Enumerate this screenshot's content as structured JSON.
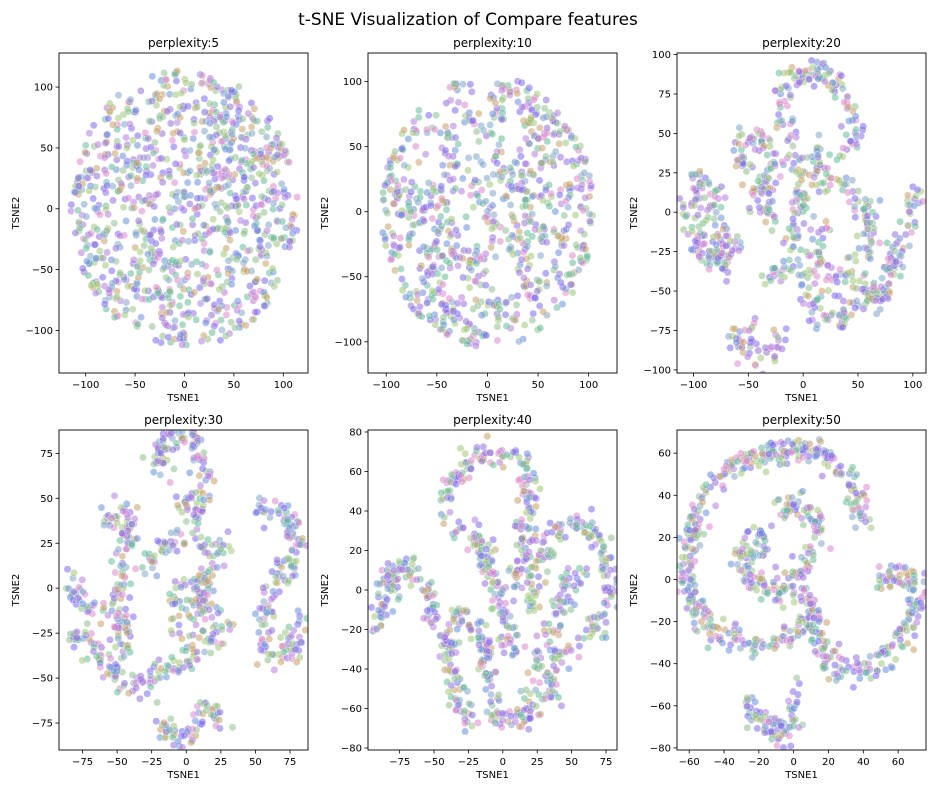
{
  "figure": {
    "title": "t-SNE Visualization of Compare features"
  },
  "chart_data": [
    {
      "type": "scatter",
      "title": "perplexity:5",
      "xlabel": "TSNE1",
      "ylabel": "TSNE2",
      "xlim": [
        -127,
        125
      ],
      "ylim": [
        -135,
        128
      ],
      "xticks": [
        -100,
        -50,
        0,
        50,
        100
      ],
      "yticks": [
        -100,
        -50,
        0,
        50,
        100
      ],
      "shape": "disc",
      "shape_params": {
        "r": 115
      },
      "n_points": 950
    },
    {
      "type": "scatter",
      "title": "perplexity:10",
      "xlabel": "TSNE1",
      "ylabel": "TSNE2",
      "xlim": [
        -118,
        128
      ],
      "ylim": [
        -124,
        122
      ],
      "xticks": [
        -100,
        -50,
        0,
        50,
        100
      ],
      "yticks": [
        -100,
        -50,
        0,
        50,
        100
      ],
      "shape": "blob",
      "shape_params": {
        "r": 105
      },
      "n_points": 800
    },
    {
      "type": "scatter",
      "title": "perplexity:20",
      "xlabel": "TSNE1",
      "ylabel": "TSNE2",
      "xlim": [
        -115,
        112
      ],
      "ylim": [
        -102,
        101
      ],
      "xticks": [
        -100,
        -50,
        0,
        50,
        100
      ],
      "yticks": [
        -100,
        -75,
        -50,
        -25,
        0,
        25,
        50,
        75,
        100
      ],
      "shape": "strands",
      "shape_params": {
        "strands": [
          [
            [
              -60,
              -20
            ],
            [
              -90,
              -30
            ],
            [
              -105,
              0
            ],
            [
              -95,
              25
            ],
            [
              -80,
              10
            ],
            [
              -70,
              -40
            ]
          ],
          [
            [
              -40,
              -70
            ],
            [
              -60,
              -80
            ],
            [
              -35,
              -95
            ],
            [
              -20,
              -75
            ]
          ],
          [
            [
              -50,
              20
            ],
            [
              -60,
              45
            ],
            [
              -35,
              45
            ],
            [
              -25,
              30
            ],
            [
              -40,
              10
            ],
            [
              -25,
              -10
            ]
          ],
          [
            [
              -30,
              -45
            ],
            [
              -10,
              -25
            ],
            [
              0,
              10
            ],
            [
              -10,
              50
            ],
            [
              -20,
              80
            ],
            [
              10,
              90
            ],
            [
              40,
              75
            ],
            [
              50,
              45
            ],
            [
              30,
              40
            ]
          ],
          [
            [
              10,
              40
            ],
            [
              20,
              20
            ],
            [
              45,
              15
            ],
            [
              60,
              0
            ],
            [
              55,
              -25
            ],
            [
              30,
              -45
            ],
            [
              10,
              -30
            ],
            [
              20,
              -10
            ]
          ],
          [
            [
              0,
              -40
            ],
            [
              10,
              -65
            ],
            [
              40,
              -70
            ],
            [
              55,
              -45
            ],
            [
              65,
              -60
            ],
            [
              80,
              -40
            ],
            [
              105,
              15
            ]
          ]
        ]
      },
      "n_points": 800
    },
    {
      "type": "scatter",
      "title": "perplexity:30",
      "xlabel": "TSNE1",
      "ylabel": "TSNE2",
      "xlim": [
        -92,
        88
      ],
      "ylim": [
        -90,
        88
      ],
      "xticks": [
        -75,
        -50,
        -25,
        0,
        25,
        50,
        75
      ],
      "yticks": [
        -75,
        -50,
        -25,
        0,
        25,
        50,
        75
      ],
      "shape": "strands",
      "shape_params": {
        "strands": [
          [
            [
              -85,
              5
            ],
            [
              -75,
              -5
            ],
            [
              -65,
              -15
            ]
          ],
          [
            [
              -85,
              -25
            ],
            [
              -60,
              -40
            ],
            [
              -40,
              -55
            ],
            [
              -20,
              -45
            ],
            [
              0,
              -40
            ],
            [
              20,
              -30
            ],
            [
              25,
              -10
            ]
          ],
          [
            [
              -60,
              30
            ],
            [
              -55,
              45
            ],
            [
              -40,
              40
            ],
            [
              -45,
              15
            ],
            [
              -50,
              -10
            ],
            [
              -45,
              -35
            ]
          ],
          [
            [
              -30,
              10
            ],
            [
              -15,
              25
            ],
            [
              5,
              28
            ],
            [
              25,
              20
            ],
            [
              35,
              30
            ]
          ],
          [
            [
              -15,
              60
            ],
            [
              -20,
              80
            ],
            [
              5,
              85
            ],
            [
              15,
              60
            ],
            [
              10,
              40
            ],
            [
              -5,
              50
            ]
          ],
          [
            [
              -20,
              -70
            ],
            [
              -10,
              -85
            ],
            [
              5,
              -80
            ],
            [
              15,
              -65
            ],
            [
              25,
              -75
            ]
          ],
          [
            [
              -10,
              -25
            ],
            [
              -5,
              0
            ],
            [
              10,
              -10
            ],
            [
              15,
              10
            ],
            [
              5,
              -30
            ]
          ],
          [
            [
              55,
              40
            ],
            [
              70,
              45
            ],
            [
              80,
              25
            ],
            [
              65,
              0
            ],
            [
              55,
              -20
            ],
            [
              60,
              -40
            ],
            [
              75,
              -35
            ],
            [
              80,
              -15
            ]
          ]
        ]
      },
      "n_points": 800
    },
    {
      "type": "scatter",
      "title": "perplexity:40",
      "xlabel": "TSNE1",
      "ylabel": "TSNE2",
      "xlim": [
        -98,
        83
      ],
      "ylim": [
        -81,
        81
      ],
      "xticks": [
        -75,
        -50,
        -25,
        0,
        25,
        50,
        75
      ],
      "yticks": [
        -80,
        -60,
        -40,
        -20,
        0,
        20,
        40,
        60,
        80
      ],
      "shape": "strands",
      "shape_params": {
        "strands": [
          [
            [
              -92,
              -20
            ],
            [
              -80,
              10
            ],
            [
              -65,
              12
            ],
            [
              -55,
              0
            ],
            [
              -50,
              -20
            ]
          ],
          [
            [
              -25,
              -70
            ],
            [
              -35,
              -45
            ],
            [
              -40,
              -25
            ],
            [
              -30,
              -10
            ],
            [
              -15,
              -25
            ],
            [
              -10,
              -50
            ],
            [
              -5,
              -65
            ],
            [
              15,
              -65
            ],
            [
              25,
              -50
            ]
          ],
          [
            [
              -35,
              30
            ],
            [
              -40,
              50
            ],
            [
              -25,
              65
            ],
            [
              -5,
              72
            ],
            [
              15,
              65
            ],
            [
              20,
              45
            ],
            [
              15,
              20
            ],
            [
              10,
              0
            ]
          ],
          [
            [
              -20,
              30
            ],
            [
              -10,
              10
            ],
            [
              0,
              -10
            ],
            [
              5,
              -30
            ],
            [
              10,
              -25
            ]
          ],
          [
            [
              20,
              -10
            ],
            [
              25,
              10
            ],
            [
              40,
              30
            ],
            [
              55,
              35
            ],
            [
              70,
              25
            ],
            [
              78,
              0
            ],
            [
              70,
              -20
            ],
            [
              55,
              -25
            ],
            [
              40,
              -35
            ],
            [
              30,
              -60
            ]
          ],
          [
            [
              25,
              -40
            ],
            [
              35,
              -20
            ],
            [
              45,
              0
            ],
            [
              55,
              10
            ]
          ]
        ]
      },
      "n_points": 850
    },
    {
      "type": "scatter",
      "title": "perplexity:50",
      "xlabel": "TSNE1",
      "ylabel": "TSNE2",
      "xlim": [
        -67,
        76
      ],
      "ylim": [
        -81,
        71
      ],
      "xticks": [
        -60,
        -40,
        -20,
        0,
        20,
        40,
        60
      ],
      "yticks": [
        -80,
        -60,
        -40,
        -20,
        0,
        20,
        40,
        60
      ],
      "shape": "strands",
      "shape_params": {
        "strands": [
          [
            [
              40,
              25
            ],
            [
              35,
              45
            ],
            [
              20,
              58
            ],
            [
              0,
              62
            ],
            [
              -20,
              60
            ],
            [
              -40,
              50
            ],
            [
              -55,
              35
            ],
            [
              -62,
              10
            ],
            [
              -60,
              -10
            ],
            [
              -45,
              -25
            ],
            [
              -25,
              -30
            ],
            [
              -5,
              -30
            ],
            [
              10,
              -20
            ],
            [
              5,
              -5
            ]
          ],
          [
            [
              -10,
              35
            ],
            [
              5,
              37
            ],
            [
              15,
              25
            ],
            [
              10,
              10
            ],
            [
              0,
              0
            ],
            [
              -10,
              -5
            ],
            [
              -25,
              0
            ],
            [
              -30,
              15
            ],
            [
              -20,
              25
            ],
            [
              -15,
              10
            ]
          ],
          [
            [
              10,
              -10
            ],
            [
              15,
              -30
            ],
            [
              25,
              -45
            ],
            [
              40,
              -45
            ],
            [
              55,
              -35
            ],
            [
              68,
              -20
            ],
            [
              72,
              -5
            ],
            [
              60,
              5
            ],
            [
              50,
              0
            ]
          ],
          [
            [
              -30,
              -60
            ],
            [
              -20,
              -65
            ],
            [
              -10,
              -72
            ],
            [
              0,
              -70
            ],
            [
              0,
              -55
            ]
          ]
        ]
      },
      "n_points": 850
    }
  ]
}
